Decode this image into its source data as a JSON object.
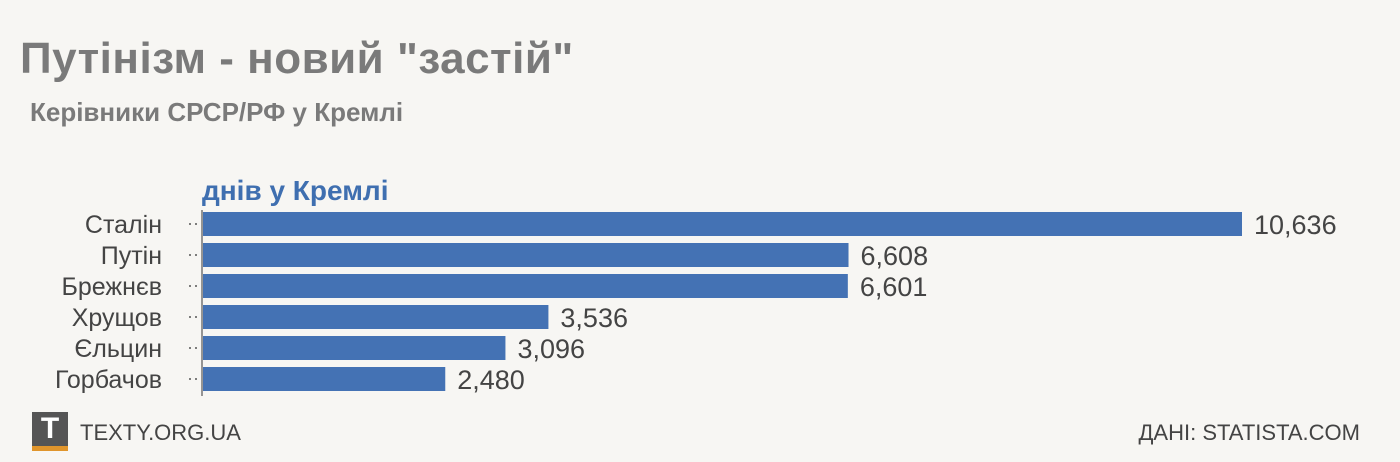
{
  "header": {
    "title": "Путінізм - новий \"застій\"",
    "subtitle": "Керівники СРСР/РФ у Кремлі"
  },
  "chart_data": {
    "type": "bar",
    "orientation": "horizontal",
    "series": [
      {
        "name": "днів у Кремлі",
        "color": "#4472b4",
        "values": [
          10636,
          6608,
          6601,
          3536,
          3096,
          2480
        ]
      }
    ],
    "categories": [
      "Сталін",
      "Путін",
      "Брежнєв",
      "Хрущов",
      "Єльцин",
      "Горбачов"
    ],
    "value_labels": [
      "10,636",
      "6,608",
      "6,601",
      "3,536",
      "3,096",
      "2,480"
    ],
    "xlim": [
      0,
      10636
    ],
    "grid": false,
    "legend": "top-left"
  },
  "footer": {
    "logo_letter": "T",
    "site": "TEXTY.ORG.UA",
    "source": "ДАНІ: STATISTA.COM"
  },
  "colors": {
    "bar": "#4472b4",
    "title": "#7a7a7a",
    "series_label": "#3f6fb0",
    "logo_accent": "#e0952c"
  }
}
